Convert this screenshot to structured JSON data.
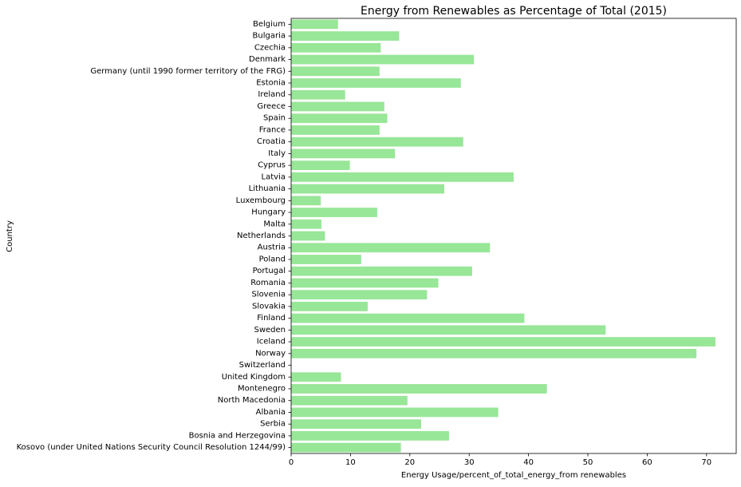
{
  "chart_data": {
    "type": "bar",
    "orientation": "horizontal",
    "title": "Energy from Renewables as Percentage of Total (2015)",
    "xlabel": "Energy Usage/percent_of_total_energy_from renewables",
    "ylabel": "Country",
    "xlim": [
      0,
      75
    ],
    "xticks": [
      0,
      10,
      20,
      30,
      40,
      50,
      60,
      70
    ],
    "grid": false,
    "bar_color": "#98e698",
    "categories": [
      "Belgium",
      "Bulgaria",
      "Czechia",
      "Denmark",
      "Germany (until 1990 former territory of the FRG)",
      "Estonia",
      "Ireland",
      "Greece",
      "Spain",
      "France",
      "Croatia",
      "Italy",
      "Cyprus",
      "Latvia",
      "Lithuania",
      "Luxembourg",
      "Hungary",
      "Malta",
      "Netherlands",
      "Austria",
      "Poland",
      "Portugal",
      "Romania",
      "Slovenia",
      "Slovakia",
      "Finland",
      "Sweden",
      "Iceland",
      "Norway",
      "Switzerland",
      "United Kingdom",
      "Montenegro",
      "North Macedonia",
      "Albania",
      "Serbia",
      "Bosnia and Herzegovina",
      "Kosovo (under United Nations Security Council Resolution 1244/99)"
    ],
    "values": [
      7.9,
      18.2,
      15.1,
      30.8,
      14.9,
      28.6,
      9.1,
      15.7,
      16.2,
      14.9,
      29.0,
      17.5,
      9.9,
      37.5,
      25.8,
      5.0,
      14.5,
      5.1,
      5.7,
      33.5,
      11.8,
      30.5,
      24.8,
      22.9,
      12.9,
      39.3,
      53.0,
      71.5,
      68.3,
      0.0,
      8.4,
      43.1,
      19.6,
      34.9,
      21.9,
      26.6,
      18.5
    ]
  }
}
